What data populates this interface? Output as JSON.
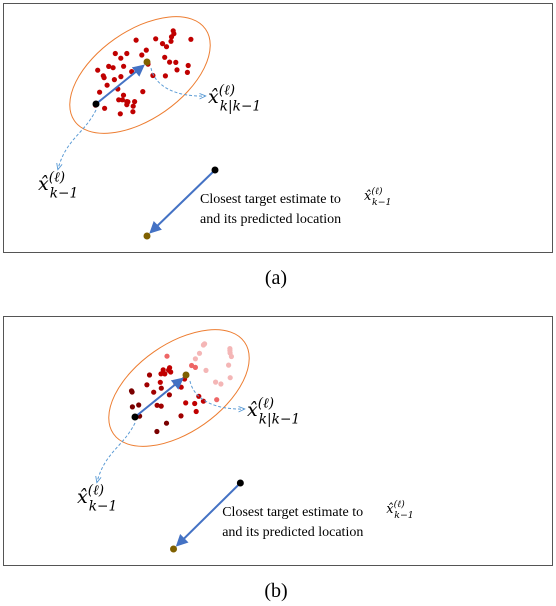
{
  "panels": [
    {
      "caption": "(a)",
      "estimate_label": {
        "base": "x̂",
        "sup": "(ℓ)",
        "sub": "k−1"
      },
      "predicted_label": {
        "base": "x̂",
        "sup": "(ℓ)",
        "sub": "k|k−1"
      },
      "note": {
        "text": "Closest target estimate to",
        "math": {
          "base": "x̂",
          "sup": "(ℓ)",
          "sub": "k−1"
        },
        "line2": "and its predicted location"
      }
    },
    {
      "caption": "(b)",
      "estimate_label": {
        "base": "x̂",
        "sup": "(ℓ)",
        "sub": "k−1"
      },
      "predicted_label": {
        "base": "x̂",
        "sup": "(ℓ)",
        "sub": "k|k−1"
      },
      "note": {
        "text": "Closest target estimate to",
        "math": {
          "base": "x̂",
          "sup": "(ℓ)",
          "sub": "k−1"
        },
        "line2": "and its predicted location"
      }
    }
  ]
}
